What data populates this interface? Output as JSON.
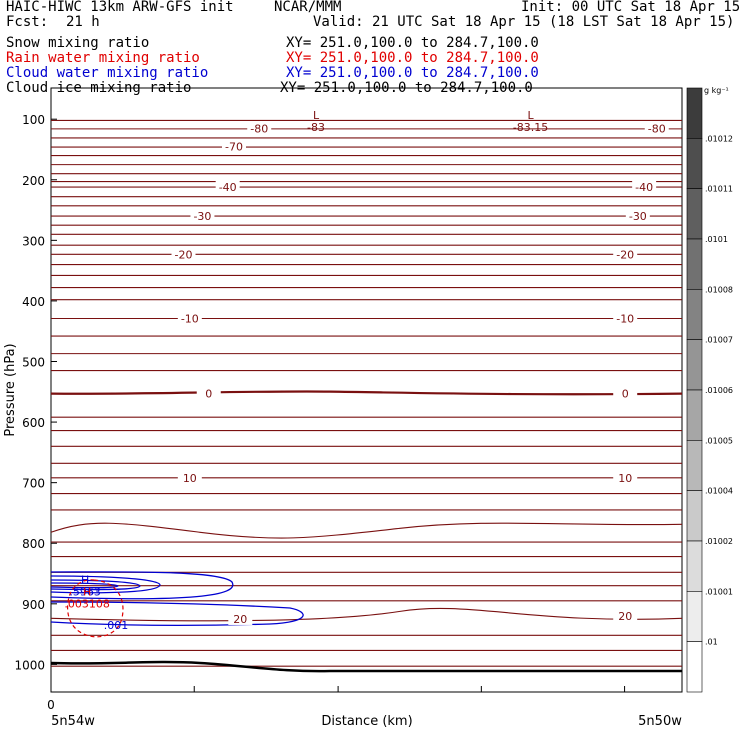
{
  "header": {
    "model": "HAIC-HIWC 13km ARW-GFS init",
    "org": "NCAR/MMM",
    "init": "Init: 00 UTC Sat 18 Apr 15",
    "fcst_label": "Fcst:",
    "fcst_value": "21 h",
    "valid": "Valid: 21 UTC Sat 18 Apr 15 (18 LST Sat 18 Apr 15)",
    "fields": [
      {
        "name": "Snow mixing ratio",
        "xy": "XY= 251.0,100.0 to 284.7,100.0",
        "color": "#000000"
      },
      {
        "name": "Rain water mixing ratio",
        "xy": "XY= 251.0,100.0 to 284.7,100.0",
        "color": "#e00000"
      },
      {
        "name": "Cloud water mixing ratio",
        "xy": "XY= 251.0,100.0 to 284.7,100.0",
        "color": "#0000d0"
      },
      {
        "name": "Cloud ice mixing ratio",
        "xy": "XY= 251.0,100.0 to 284.7,100.0",
        "color": "#000000"
      }
    ]
  },
  "chart_data": {
    "type": "contour",
    "xlabel": "Distance (km)",
    "ylabel": "Pressure (hPa)",
    "x_tick_labels": [
      "0"
    ],
    "x_end_labels": [
      "5n54w",
      "5n50w"
    ],
    "yticks": [
      100,
      200,
      300,
      400,
      500,
      600,
      700,
      800,
      900,
      1000
    ],
    "ylim": [
      1050,
      75
    ],
    "colorbar": {
      "unit": "g kg⁻¹",
      "labels": [
        ".01012",
        ".01011",
        ".0101",
        ".01008",
        ".01007",
        ".01006",
        ".01005",
        ".01004",
        ".01002",
        ".01001",
        ".01"
      ]
    },
    "temperature_contour_labels": [
      {
        "value": "-80",
        "pressure": 115,
        "x": 0.33
      },
      {
        "value": "-80",
        "pressure": 115,
        "x": 0.96
      },
      {
        "value": "-70",
        "pressure": 145,
        "x": 0.29
      },
      {
        "value": "-40",
        "pressure": 212,
        "x": 0.28
      },
      {
        "value": "-40",
        "pressure": 212,
        "x": 0.94
      },
      {
        "value": "-30",
        "pressure": 260,
        "x": 0.24
      },
      {
        "value": "-30",
        "pressure": 260,
        "x": 0.93
      },
      {
        "value": "-20",
        "pressure": 323,
        "x": 0.21
      },
      {
        "value": "-20",
        "pressure": 323,
        "x": 0.91
      },
      {
        "value": "-10",
        "pressure": 429,
        "x": 0.22
      },
      {
        "value": "-10",
        "pressure": 429,
        "x": 0.91
      },
      {
        "value": "0",
        "pressure": 553,
        "x": 0.25
      },
      {
        "value": "0",
        "pressure": 553,
        "x": 0.91
      },
      {
        "value": "10",
        "pressure": 692,
        "x": 0.22
      },
      {
        "value": "10",
        "pressure": 692,
        "x": 0.91
      },
      {
        "value": "20",
        "pressure": 925,
        "x": 0.3
      },
      {
        "value": "20",
        "pressure": 920,
        "x": 0.91
      }
    ],
    "extrema": [
      {
        "kind": "L",
        "value": "-83",
        "pressure": 100,
        "x": 0.42
      },
      {
        "kind": "L",
        "value": "-83.15",
        "pressure": 100,
        "x": 0.76
      },
      {
        "kind": "H",
        "value": ".5963",
        "pressure": 880,
        "x": 0.07
      },
      {
        "kind": "H",
        "value": ".003108",
        "pressure": 893,
        "x": 0.07
      }
    ],
    "cloud_water_low_label": ".001"
  }
}
